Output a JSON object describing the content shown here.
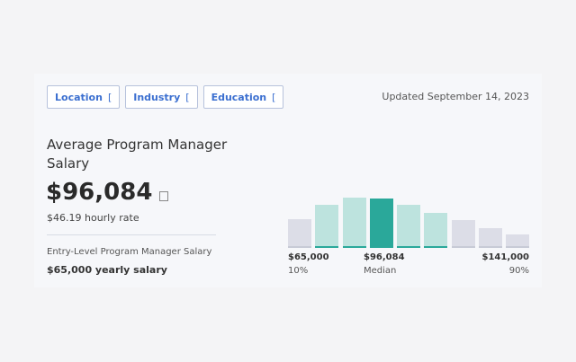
{
  "filters": [
    {
      "label": "Location",
      "bracket": "["
    },
    {
      "label": "Industry",
      "bracket": "["
    },
    {
      "label": "Education",
      "bracket": "["
    }
  ],
  "updated": "Updated September 14, 2023",
  "title": "Average Program Manager Salary",
  "salary": "$96,084",
  "hourly": "$46.19 hourly rate",
  "entry": {
    "label": "Entry-Level Program Manager Salary",
    "salary": "$65,000 yearly salary"
  },
  "colors": {
    "gray_bar": "#dcdde7",
    "gray_line": "#c7cad6",
    "teal_light": "#bde3de",
    "teal_line": "#2aa89a",
    "teal_dark": "#2aa89a"
  },
  "chart_data": {
    "type": "bar",
    "relative_heights": [
      0.55,
      0.82,
      0.97,
      0.95,
      0.83,
      0.68,
      0.54,
      0.38,
      0.26
    ],
    "styles": [
      "gray",
      "teal",
      "teal",
      "median",
      "teal",
      "teal",
      "gray",
      "gray",
      "gray"
    ],
    "labels": {
      "low": {
        "value": "$65,000",
        "pct": "10%"
      },
      "median": {
        "value": "$96,084",
        "pct": "Median"
      },
      "high": {
        "value": "$141,000",
        "pct": "90%"
      }
    }
  }
}
